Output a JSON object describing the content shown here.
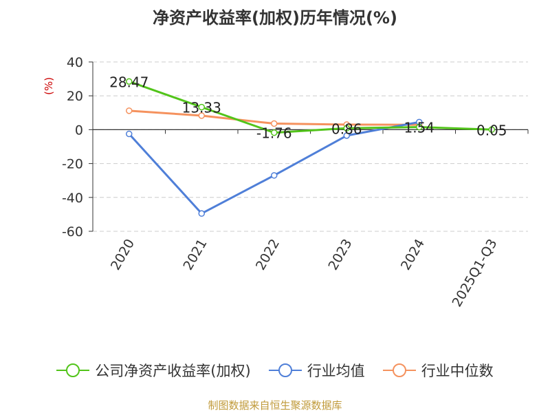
{
  "chart_data": {
    "type": "line",
    "title": "净资产收益率(加权)历年情况(%)",
    "ylabel": "(%)",
    "ylim": [
      -60,
      40
    ],
    "yticks": [
      40,
      20,
      0,
      -20,
      -40,
      -60
    ],
    "categories": [
      "2020",
      "2021",
      "2022",
      "2023",
      "2024",
      "2025Q1-Q3"
    ],
    "grid": true,
    "legend_position": "bottom",
    "series": [
      {
        "name": "公司净资产收益率(加权)",
        "color": "#52c41a",
        "values": [
          28.47,
          13.33,
          -1.76,
          0.86,
          1.54,
          0.05
        ],
        "labels": [
          "28.47",
          "13.33",
          "-1.76",
          "0.86",
          "1.54",
          "0.05"
        ]
      },
      {
        "name": "行业均值",
        "color": "#4f7fd8",
        "values": [
          -2.5,
          -49.5,
          -27.0,
          -3.5,
          4.5,
          null
        ]
      },
      {
        "name": "行业中位数",
        "color": "#f5925e",
        "values": [
          11.2,
          8.3,
          3.6,
          3.0,
          2.9,
          null
        ]
      }
    ]
  },
  "source_note": "制图数据来自恒生聚源数据库"
}
